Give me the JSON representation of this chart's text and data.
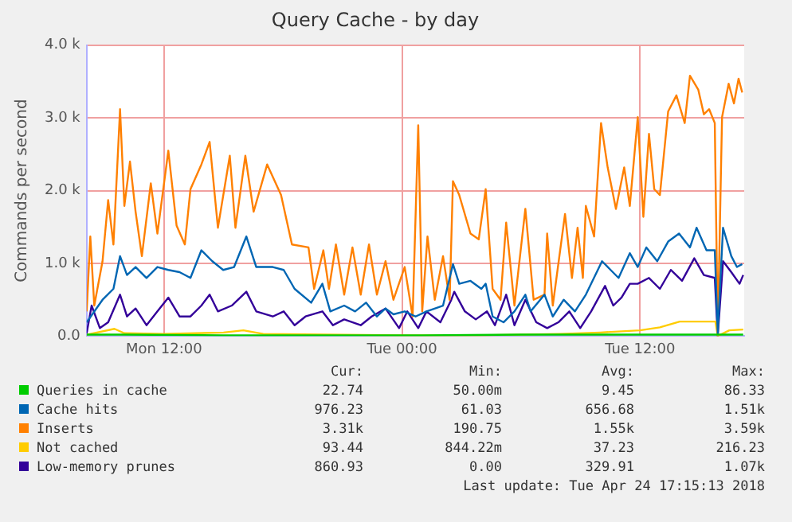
{
  "chart_data": {
    "type": "line",
    "title": "Query Cache - by day",
    "ylabel": "Commands per second",
    "xlim": [
      "2018-04-23T08:06",
      "2018-04-24T17:15"
    ],
    "xticks": [
      {
        "value": "2018-04-23T12:00",
        "label": "Mon 12:00"
      },
      {
        "value": "2018-04-24T00:00",
        "label": "Tue 00:00"
      },
      {
        "value": "2018-04-24T12:00",
        "label": "Tue 12:00"
      }
    ],
    "ylim": [
      0,
      4000
    ],
    "yticks": [
      {
        "value": 0,
        "label": "0.0"
      },
      {
        "value": 1000,
        "label": "1.0 k"
      },
      {
        "value": 2000,
        "label": "2.0 k"
      },
      {
        "value": 3000,
        "label": "3.0 k"
      },
      {
        "value": 4000,
        "label": "4.0 k"
      }
    ],
    "grid": true,
    "legend": "bottom",
    "marker": "none",
    "line_style": "solid",
    "series": [
      {
        "name": "Queries in cache",
        "color": "#00cc00",
        "x": [
          "2018-04-23T08:06",
          "2018-04-23T10:00",
          "2018-04-23T15:00",
          "2018-04-23T20:00",
          "2018-04-24T01:00",
          "2018-04-24T06:00",
          "2018-04-24T11:00",
          "2018-04-24T17:12"
        ],
        "values": [
          20,
          20,
          10,
          10,
          10,
          20,
          20,
          20
        ]
      },
      {
        "name": "Cache hits",
        "color": "#0066b3",
        "x": [
          "2018-04-23T08:06",
          "2018-04-23T08:54",
          "2018-04-23T09:27",
          "2018-04-23T09:47",
          "2018-04-23T10:08",
          "2018-04-23T10:34",
          "2018-04-23T11:07",
          "2018-04-23T11:40",
          "2018-04-23T12:13",
          "2018-04-23T12:47",
          "2018-04-23T13:20",
          "2018-04-23T13:53",
          "2018-04-23T14:26",
          "2018-04-23T14:59",
          "2018-04-23T15:32",
          "2018-04-23T16:09",
          "2018-04-23T16:39",
          "2018-04-23T17:29",
          "2018-04-23T18:02",
          "2018-04-23T18:35",
          "2018-04-23T19:25",
          "2018-04-23T19:59",
          "2018-04-23T20:23",
          "2018-04-23T21:05",
          "2018-04-23T21:38",
          "2018-04-23T22:11",
          "2018-04-23T22:44",
          "2018-04-23T23:10",
          "2018-04-23T23:34",
          "2018-04-24T00:08",
          "2018-04-24T00:41",
          "2018-04-24T01:14",
          "2018-04-24T02:04",
          "2018-04-24T02:34",
          "2018-04-24T02:53",
          "2018-04-24T03:27",
          "2018-04-24T04:00",
          "2018-04-24T04:13",
          "2018-04-24T04:34",
          "2018-04-24T05:07",
          "2018-04-24T05:40",
          "2018-04-24T06:13",
          "2018-04-24T06:29",
          "2018-04-24T07:11",
          "2018-04-24T07:36",
          "2018-04-24T08:09",
          "2018-04-24T08:43",
          "2018-04-24T09:16",
          "2018-04-24T10:05",
          "2018-04-24T10:31",
          "2018-04-24T10:55",
          "2018-04-24T11:29",
          "2018-04-24T11:53",
          "2018-04-24T12:19",
          "2018-04-24T12:52",
          "2018-04-24T13:25",
          "2018-04-24T13:58",
          "2018-04-24T14:31",
          "2018-04-24T14:51",
          "2018-04-24T15:21",
          "2018-04-24T15:46",
          "2018-04-24T15:55",
          "2018-04-24T16:11",
          "2018-04-24T16:36",
          "2018-04-24T16:53",
          "2018-04-24T17:09"
        ],
        "values": [
          190,
          500,
          650,
          1100,
          840,
          950,
          800,
          950,
          910,
          880,
          800,
          1180,
          1030,
          910,
          950,
          1370,
          950,
          950,
          910,
          650,
          460,
          720,
          340,
          420,
          340,
          460,
          270,
          380,
          300,
          340,
          270,
          340,
          420,
          990,
          720,
          760,
          650,
          720,
          270,
          190,
          340,
          570,
          340,
          570,
          270,
          500,
          340,
          570,
          1030,
          910,
          800,
          1140,
          950,
          1220,
          1030,
          1300,
          1410,
          1220,
          1490,
          1180,
          1180,
          40,
          1490,
          1100,
          950,
          990
        ]
      },
      {
        "name": "Inserts",
        "color": "#ff8000",
        "x": [
          "2018-04-23T08:06",
          "2018-04-23T08:17",
          "2018-04-23T08:29",
          "2018-04-23T08:54",
          "2018-04-23T09:11",
          "2018-04-23T09:27",
          "2018-04-23T09:47",
          "2018-04-23T10:00",
          "2018-04-23T10:17",
          "2018-04-23T10:34",
          "2018-04-23T10:53",
          "2018-04-23T11:20",
          "2018-04-23T11:40",
          "2018-04-23T12:13",
          "2018-04-23T12:38",
          "2018-04-23T13:03",
          "2018-04-23T13:20",
          "2018-04-23T13:53",
          "2018-04-23T14:18",
          "2018-04-23T14:43",
          "2018-04-23T15:19",
          "2018-04-23T15:36",
          "2018-04-23T16:06",
          "2018-04-23T16:31",
          "2018-04-23T17:12",
          "2018-04-23T17:54",
          "2018-04-23T18:27",
          "2018-04-23T19:17",
          "2018-04-23T19:34",
          "2018-04-23T20:02",
          "2018-04-23T20:19",
          "2018-04-23T20:40",
          "2018-04-23T21:05",
          "2018-04-23T21:30",
          "2018-04-23T21:55",
          "2018-04-23T22:20",
          "2018-04-23T22:44",
          "2018-04-23T23:10",
          "2018-04-23T23:34",
          "2018-04-24T00:08",
          "2018-04-24T00:32",
          "2018-04-24T00:49",
          "2018-04-24T01:01",
          "2018-04-24T01:17",
          "2018-04-24T01:39",
          "2018-04-24T02:04",
          "2018-04-24T02:24",
          "2018-04-24T02:34",
          "2018-04-24T02:53",
          "2018-04-24T03:27",
          "2018-04-24T03:52",
          "2018-04-24T04:13",
          "2018-04-24T04:34",
          "2018-04-24T04:58",
          "2018-04-24T05:15",
          "2018-04-24T05:40",
          "2018-04-24T06:13",
          "2018-04-24T06:38",
          "2018-04-24T07:11",
          "2018-04-24T07:19",
          "2018-04-24T07:36",
          "2018-04-24T08:13",
          "2018-04-24T08:34",
          "2018-04-24T08:51",
          "2018-04-24T09:07",
          "2018-04-24T09:16",
          "2018-04-24T09:41",
          "2018-04-24T10:02",
          "2018-04-24T10:22",
          "2018-04-24T10:47",
          "2018-04-24T11:12",
          "2018-04-24T11:29",
          "2018-04-24T11:53",
          "2018-04-24T12:10",
          "2018-04-24T12:27",
          "2018-04-24T12:43",
          "2018-04-24T13:00",
          "2018-04-24T13:25",
          "2018-04-24T13:50",
          "2018-04-24T14:15",
          "2018-04-24T14:31",
          "2018-04-24T14:56",
          "2018-04-24T15:13",
          "2018-04-24T15:29",
          "2018-04-24T15:46",
          "2018-04-24T15:55",
          "2018-04-24T16:08",
          "2018-04-24T16:28",
          "2018-04-24T16:44",
          "2018-04-24T16:58",
          "2018-04-24T17:09"
        ],
        "values": [
          340,
          1370,
          420,
          1030,
          1870,
          1260,
          3120,
          1790,
          2400,
          1710,
          1100,
          2100,
          1410,
          2550,
          1520,
          1260,
          2020,
          2360,
          2670,
          1490,
          2480,
          1490,
          2480,
          1710,
          2360,
          1940,
          1260,
          1220,
          650,
          1180,
          650,
          1260,
          570,
          1220,
          570,
          1260,
          570,
          1030,
          500,
          950,
          270,
          2900,
          340,
          1370,
          500,
          1100,
          500,
          2130,
          1940,
          1410,
          1330,
          2020,
          650,
          500,
          1560,
          420,
          1750,
          500,
          570,
          1410,
          420,
          1680,
          800,
          1490,
          800,
          1790,
          1370,
          2930,
          2320,
          1750,
          2320,
          1790,
          3010,
          1640,
          2780,
          2020,
          1940,
          3090,
          3310,
          2930,
          3580,
          3390,
          3050,
          3120,
          2930,
          40,
          3010,
          3470,
          3200,
          3540,
          3350
        ]
      },
      {
        "name": "Not cached",
        "color": "#ffcc00",
        "x": [
          "2018-04-23T08:06",
          "2018-04-23T09:30",
          "2018-04-23T10:00",
          "2018-04-23T12:00",
          "2018-04-23T15:00",
          "2018-04-23T16:00",
          "2018-04-23T17:00",
          "2018-04-23T20:00",
          "2018-04-24T00:00",
          "2018-04-24T04:00",
          "2018-04-24T08:00",
          "2018-04-24T10:00",
          "2018-04-24T12:00",
          "2018-04-24T13:00",
          "2018-04-24T14:00",
          "2018-04-24T15:48",
          "2018-04-24T15:55",
          "2018-04-24T16:30",
          "2018-04-24T17:12"
        ],
        "values": [
          20,
          100,
          40,
          30,
          50,
          80,
          30,
          20,
          10,
          10,
          30,
          50,
          80,
          120,
          200,
          200,
          0,
          80,
          90
        ]
      },
      {
        "name": "Low-memory prunes",
        "color": "#330099",
        "x": [
          "2018-04-23T08:06",
          "2018-04-23T08:21",
          "2018-04-23T08:46",
          "2018-04-23T09:11",
          "2018-04-23T09:47",
          "2018-04-23T10:08",
          "2018-04-23T10:34",
          "2018-04-23T11:07",
          "2018-04-23T11:40",
          "2018-04-23T12:13",
          "2018-04-23T12:47",
          "2018-04-23T13:20",
          "2018-04-23T13:53",
          "2018-04-23T14:18",
          "2018-04-23T14:43",
          "2018-04-23T15:25",
          "2018-04-23T16:09",
          "2018-04-23T16:39",
          "2018-04-23T17:29",
          "2018-04-23T18:02",
          "2018-04-23T18:35",
          "2018-04-23T19:08",
          "2018-04-23T19:59",
          "2018-04-23T20:31",
          "2018-04-23T21:05",
          "2018-04-23T21:55",
          "2018-04-23T22:28",
          "2018-04-23T23:10",
          "2018-04-23T23:51",
          "2018-04-24T00:16",
          "2018-04-24T00:49",
          "2018-04-24T01:14",
          "2018-04-24T01:56",
          "2018-04-24T02:29",
          "2018-04-24T02:38",
          "2018-04-24T03:10",
          "2018-04-24T03:43",
          "2018-04-24T04:17",
          "2018-04-24T04:41",
          "2018-04-24T05:15",
          "2018-04-24T05:40",
          "2018-04-24T06:13",
          "2018-04-24T06:46",
          "2018-04-24T07:19",
          "2018-04-24T07:53",
          "2018-04-24T08:26",
          "2018-04-24T08:59",
          "2018-04-24T09:32",
          "2018-04-24T10:14",
          "2018-04-24T10:39",
          "2018-04-24T11:04",
          "2018-04-24T11:29",
          "2018-04-24T11:53",
          "2018-04-24T12:27",
          "2018-04-24T13:00",
          "2018-04-24T13:33",
          "2018-04-24T14:07",
          "2018-04-24T14:44",
          "2018-04-24T15:13",
          "2018-04-24T15:46",
          "2018-04-24T15:55",
          "2018-04-24T16:11",
          "2018-04-24T16:36",
          "2018-04-24T17:01",
          "2018-04-24T17:12"
        ],
        "values": [
          40,
          420,
          110,
          190,
          570,
          270,
          380,
          150,
          340,
          530,
          270,
          270,
          420,
          570,
          340,
          420,
          610,
          340,
          270,
          340,
          150,
          270,
          340,
          150,
          230,
          150,
          270,
          380,
          110,
          340,
          110,
          340,
          190,
          500,
          610,
          340,
          230,
          340,
          150,
          570,
          150,
          500,
          190,
          110,
          190,
          340,
          110,
          340,
          690,
          420,
          530,
          720,
          720,
          800,
          650,
          910,
          760,
          1070,
          840,
          800,
          0,
          1030,
          880,
          720,
          840
        ]
      }
    ],
    "annotations": [
      "Cur:",
      "Min:",
      "Avg:",
      "Max:",
      "22.74",
      "50.00m",
      "9.45",
      "86.33",
      "976.23",
      "61.03",
      "656.68",
      "1.51k",
      "3.31k",
      "190.75",
      "1.55k",
      "3.59k",
      "93.44",
      "844.22m",
      "37.23",
      "216.23",
      "860.93",
      "0.00",
      "329.91",
      "1.07k",
      "Last update: Tue Apr 24 17:15:13 2018"
    ]
  }
}
